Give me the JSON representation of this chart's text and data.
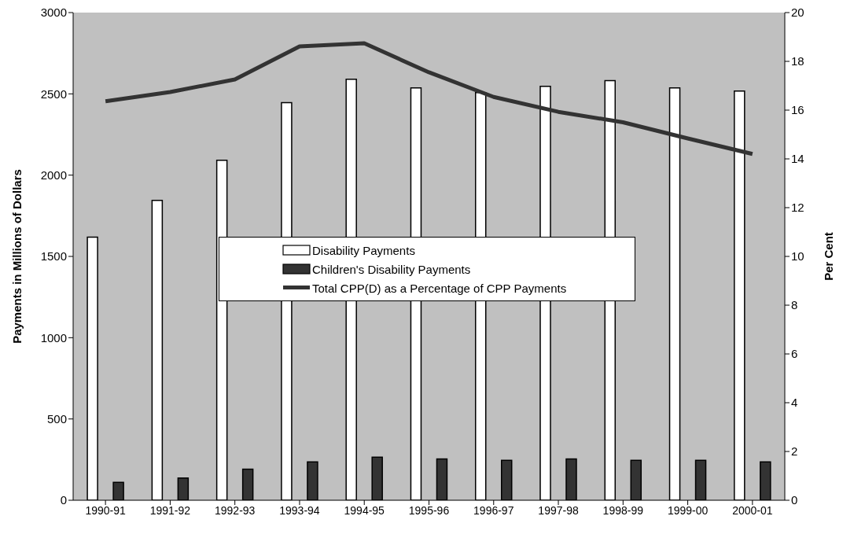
{
  "chart_data": {
    "type": "bar",
    "ylabel": "Payments in Millions of Dollars",
    "y2label": "Per Cent",
    "categories": [
      "1990-91",
      "1991-92",
      "1992-93",
      "1993-94",
      "1994-95",
      "1995-96",
      "1996-97",
      "1997-98",
      "1998-99",
      "1999-00",
      "2000-01"
    ],
    "series": [
      {
        "name": "Disability Payments",
        "color": "#ffffff",
        "values": [
          1618,
          1845,
          2091,
          2446,
          2590,
          2537,
          2508,
          2546,
          2582,
          2537,
          2517
        ]
      },
      {
        "name": "Children's Disability Payments",
        "color": "#333333",
        "values": [
          110,
          137,
          191,
          236,
          265,
          254,
          245,
          254,
          245,
          245,
          236
        ]
      },
      {
        "name": "Total CPP(D) as a Percentage of CPP Payments",
        "type": "line",
        "axis": "y2",
        "color": "#333333",
        "values": [
          16.36,
          16.74,
          17.26,
          18.61,
          18.74,
          17.55,
          16.54,
          15.93,
          15.5,
          14.84,
          14.2
        ]
      }
    ],
    "ylim": [
      0,
      3000
    ],
    "yticks": [
      0,
      500,
      1000,
      1500,
      2000,
      2500,
      3000
    ],
    "y2lim": [
      0,
      20
    ],
    "y2ticks": [
      0,
      2,
      4,
      6,
      8,
      10,
      12,
      14,
      16,
      18,
      20
    ],
    "grid": false,
    "legend": "center",
    "marker": "none",
    "line_style": "solid"
  }
}
